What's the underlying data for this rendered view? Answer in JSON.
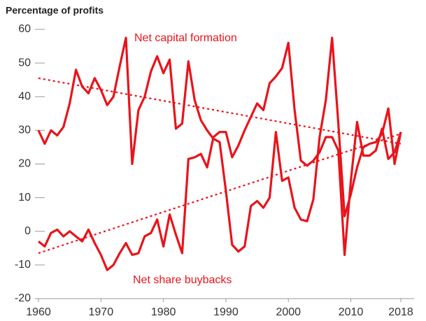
{
  "chart_data": {
    "type": "line",
    "y_label": "Percentage of profits",
    "annotations": [
      "Net capital formation",
      "Net share buybacks"
    ],
    "x": [
      1960,
      1961,
      1962,
      1963,
      1964,
      1965,
      1966,
      1967,
      1968,
      1969,
      1970,
      1971,
      1972,
      1973,
      1974,
      1975,
      1976,
      1977,
      1978,
      1979,
      1980,
      1981,
      1982,
      1983,
      1984,
      1985,
      1986,
      1987,
      1988,
      1989,
      1990,
      1991,
      1992,
      1993,
      1994,
      1995,
      1996,
      1997,
      1998,
      1999,
      2000,
      2001,
      2002,
      2003,
      2004,
      2005,
      2006,
      2007,
      2008,
      2009,
      2010,
      2011,
      2012,
      2013,
      2014,
      2015,
      2016,
      2017,
      2018
    ],
    "series": [
      {
        "color": "#e8141b",
        "values": [
          30,
          26,
          30,
          28.5,
          31,
          38,
          48,
          43,
          41,
          45.5,
          42,
          37.5,
          40,
          49,
          57.5,
          20,
          36,
          40,
          47.5,
          52,
          47,
          51,
          30.5,
          32,
          50.5,
          39,
          33,
          30,
          27.5,
          26.5,
          12,
          -4,
          -6,
          -4.5,
          7.5,
          9,
          7,
          10,
          29.5,
          15,
          16,
          7,
          3.5,
          3,
          9.5,
          28,
          39,
          57.5,
          32,
          4.5,
          11,
          19,
          25,
          26,
          26.5,
          29,
          36.5,
          20,
          29.5
        ]
      },
      {
        "color": "#e8141b",
        "values": [
          -3,
          -4.5,
          -0.5,
          0.5,
          -1.5,
          0,
          -1.5,
          -3,
          0.5,
          -3.5,
          -7,
          -11.5,
          -10,
          -6.5,
          -3.5,
          -7,
          -6.5,
          -1.5,
          -0.5,
          3.5,
          -4.5,
          5,
          -1,
          -6.5,
          21.5,
          22,
          23,
          19,
          28,
          29.5,
          29.5,
          22,
          25.5,
          30,
          34,
          38,
          36,
          44,
          46,
          48.5,
          56,
          36,
          21,
          19.5,
          21,
          23.5,
          28,
          28,
          24,
          -7,
          15,
          32.5,
          22.5,
          22.5,
          24,
          30.5,
          21.5,
          23.5,
          29.5
        ]
      }
    ],
    "trend_lines": [
      {
        "color": "#e8141b",
        "x": [
          1960,
          2018
        ],
        "values": [
          45.5,
          26
        ]
      },
      {
        "color": "#e8141b",
        "x": [
          1960,
          2018
        ],
        "values": [
          -6.5,
          29
        ]
      }
    ],
    "xlim": [
      1960,
      2018
    ],
    "xticks": [
      1960,
      1970,
      1980,
      1990,
      2000,
      2010,
      2018
    ],
    "ylim": [
      -20,
      60
    ],
    "yticks": [
      -20,
      -10,
      0,
      10,
      20,
      30,
      40,
      50,
      60
    ]
  }
}
